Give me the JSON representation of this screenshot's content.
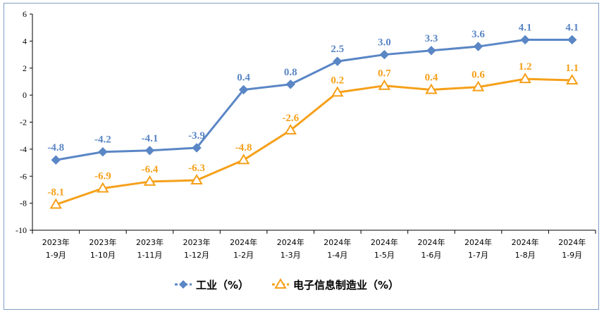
{
  "chart_data": {
    "type": "line",
    "categories": [
      [
        "2023年",
        "1-9月"
      ],
      [
        "2023年",
        "1-10月"
      ],
      [
        "2023年",
        "1-11月"
      ],
      [
        "2023年",
        "1-12月"
      ],
      [
        "2024年",
        "1-2月"
      ],
      [
        "2024年",
        "1-3月"
      ],
      [
        "2024年",
        "1-4月"
      ],
      [
        "2024年",
        "1-5月"
      ],
      [
        "2024年",
        "1-6月"
      ],
      [
        "2024年",
        "1-7月"
      ],
      [
        "2024年",
        "1-8月"
      ],
      [
        "2024年",
        "1-9月"
      ]
    ],
    "series": [
      {
        "name": "工业（%）",
        "values": [
          -4.8,
          -4.2,
          -4.1,
          -3.9,
          0.4,
          0.8,
          2.5,
          3.0,
          3.3,
          3.6,
          4.1,
          4.1
        ],
        "labels": [
          "-4.8",
          "-4.2",
          "-4.1",
          "-3.9",
          "0.4",
          "0.8",
          "2.5",
          "3.0",
          "3.3",
          "3.6",
          "4.1",
          "4.1"
        ],
        "color": "#5a86c5",
        "marker": "diamond"
      },
      {
        "name": "电子信息制造业（%）",
        "values": [
          -8.1,
          -6.9,
          -6.4,
          -6.3,
          -4.8,
          -2.6,
          0.2,
          0.7,
          0.4,
          0.6,
          1.2,
          1.1
        ],
        "labels": [
          "-8.1",
          "-6.9",
          "-6.4",
          "-6.3",
          "-4.8",
          "-2.6",
          "0.2",
          "0.7",
          "0.4",
          "0.6",
          "1.2",
          "1.1"
        ],
        "color": "#f5a01a",
        "marker": "triangle"
      }
    ],
    "ylim": [
      -10,
      6
    ],
    "yticks": [
      "-10",
      "-8",
      "-6",
      "-4",
      "-2",
      "0",
      "2",
      "4",
      "6"
    ],
    "grid": false,
    "legend": "bottom",
    "title": "",
    "xlabel": "",
    "ylabel": ""
  }
}
